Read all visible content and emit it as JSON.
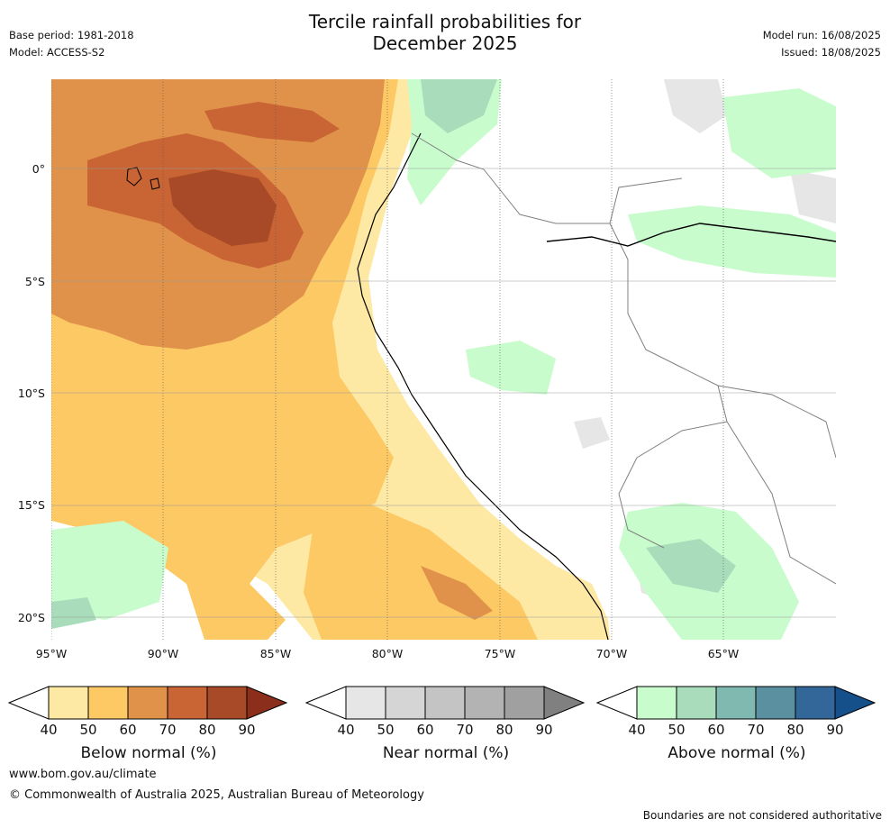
{
  "title_line1": "Tercile rainfall probabilities for",
  "title_line2": "December 2025",
  "meta_left": {
    "base_period": "Base period: 1981-2018",
    "model": "Model: ACCESS-S2"
  },
  "meta_right": {
    "model_run": "Model run: 16/08/2025",
    "issued": "Issued: 18/08/2025"
  },
  "lat_labels": [
    "0°",
    "5°S",
    "10°S",
    "15°S",
    "20°S"
  ],
  "lon_labels": [
    "95°W",
    "90°W",
    "85°W",
    "80°W",
    "75°W",
    "70°W",
    "65°W"
  ],
  "colorbars": [
    {
      "label": "Below normal (%)",
      "ticks": [
        "40",
        "50",
        "60",
        "70",
        "80",
        "90"
      ],
      "colors": [
        "#ffffff",
        "#fee9a4",
        "#fdc965",
        "#e0924a",
        "#c96434",
        "#a84a28",
        "#8c2e1c"
      ]
    },
    {
      "label": "Near normal (%)",
      "ticks": [
        "40",
        "50",
        "60",
        "70",
        "80",
        "90"
      ],
      "colors": [
        "#ffffff",
        "#e6e6e6",
        "#d5d5d5",
        "#c4c4c4",
        "#b3b3b3",
        "#a0a0a0",
        "#808080"
      ]
    },
    {
      "label": "Above normal (%)",
      "ticks": [
        "40",
        "50",
        "60",
        "70",
        "80",
        "90"
      ],
      "colors": [
        "#ffffff",
        "#c9fccd",
        "#a8dcbb",
        "#7fb9b0",
        "#5a90a0",
        "#336699",
        "#15508a"
      ]
    }
  ],
  "footer": {
    "url": "www.bom.gov.au/climate",
    "copyright": "© Commonwealth of Australia 2025, Australian Bureau of Meteorology",
    "disclaimer": "Boundaries are not considered authoritative"
  }
}
